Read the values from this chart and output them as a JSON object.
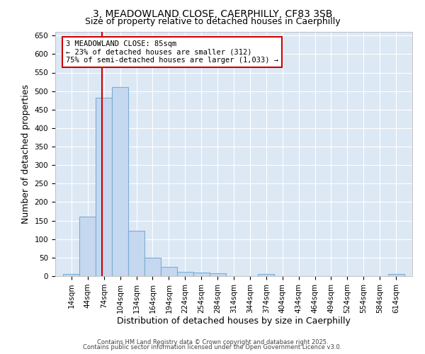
{
  "title_line1": "3, MEADOWLAND CLOSE, CAERPHILLY, CF83 3SB",
  "title_line2": "Size of property relative to detached houses in Caerphilly",
  "xlabel": "Distribution of detached houses by size in Caerphilly",
  "ylabel": "Number of detached properties",
  "bin_edges": [
    14,
    44,
    74,
    104,
    134,
    164,
    194,
    224,
    254,
    284,
    314,
    344,
    374,
    404,
    434,
    464,
    494,
    524,
    554,
    584,
    614
  ],
  "bar_heights": [
    5,
    160,
    483,
    510,
    122,
    50,
    25,
    12,
    9,
    7,
    0,
    0,
    5,
    0,
    0,
    0,
    0,
    0,
    0,
    0,
    5
  ],
  "bar_color": "#c5d8ef",
  "bar_edgecolor": "#7aadd4",
  "property_size": 85,
  "vline_color": "#cc0000",
  "annotation_text": "3 MEADOWLAND CLOSE: 85sqm\n← 23% of detached houses are smaller (312)\n75% of semi-detached houses are larger (1,033) →",
  "annotation_box_color": "#cc0000",
  "annotation_bg": "#ffffff",
  "ylim": [
    0,
    660
  ],
  "yticks": [
    0,
    50,
    100,
    150,
    200,
    250,
    300,
    350,
    400,
    450,
    500,
    550,
    600,
    650
  ],
  "plot_bg_color": "#dde8f5",
  "fig_bg_color": "#ffffff",
  "grid_color": "#ffffff",
  "footer_line1": "Contains HM Land Registry data © Crown copyright and database right 2025.",
  "footer_line2": "Contains public sector information licensed under the Open Government Licence v3.0.",
  "title_fontsize": 10,
  "subtitle_fontsize": 9,
  "tick_fontsize": 7.5,
  "label_fontsize": 9,
  "annot_fontsize": 7.5,
  "footer_fontsize": 6
}
